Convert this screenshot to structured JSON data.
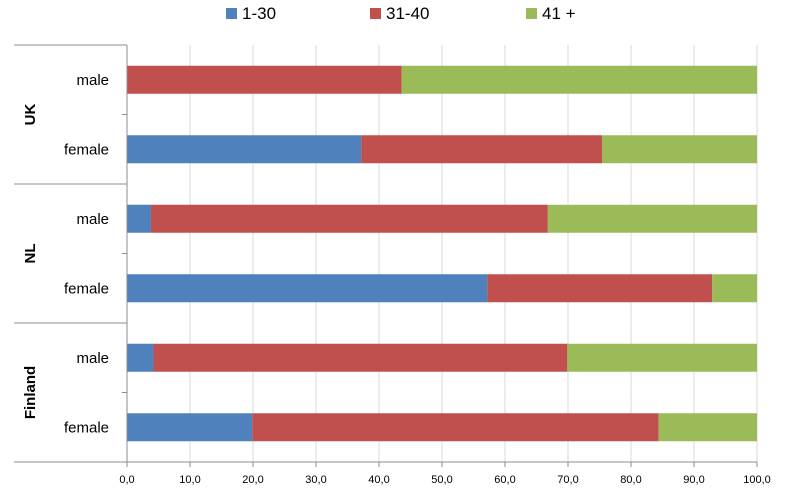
{
  "chart_data": {
    "type": "bar",
    "orientation": "horizontal",
    "stacked": true,
    "groups": [
      "UK",
      "NL",
      "Finland"
    ],
    "categories": [
      "male",
      "female",
      "male",
      "female",
      "male",
      "female"
    ],
    "category_groups": [
      "UK",
      "UK",
      "NL",
      "NL",
      "Finland",
      "Finland"
    ],
    "series": [
      {
        "name": "1-30",
        "color": "#4F81BD",
        "values": [
          0.0,
          37.2,
          3.8,
          57.2,
          4.2,
          19.9
        ]
      },
      {
        "name": "31-40",
        "color": "#C0504D",
        "values": [
          43.6,
          38.2,
          63.0,
          35.7,
          65.7,
          64.5
        ]
      },
      {
        "name": "41 +",
        "color": "#9BBB59",
        "values": [
          56.4,
          24.6,
          33.2,
          7.1,
          30.1,
          15.6
        ]
      }
    ],
    "xlim": [
      0,
      100
    ],
    "xticks": [
      "0,0",
      "10,0",
      "20,0",
      "30,0",
      "40,0",
      "50,0",
      "60,0",
      "70,0",
      "80,0",
      "90,0",
      "100,0"
    ],
    "grid": true,
    "legend_position": "top"
  }
}
